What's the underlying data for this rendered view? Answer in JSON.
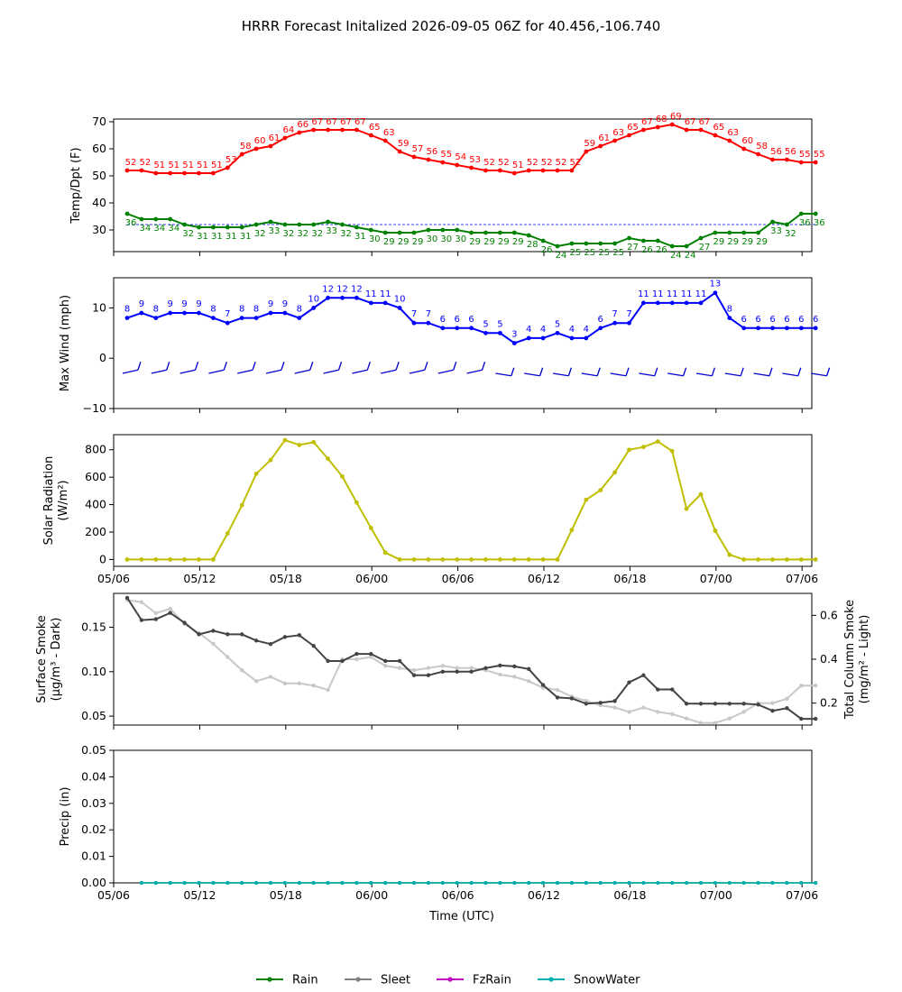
{
  "title": "HRRR Forecast Initalized 2026-09-05 06Z for 40.456,-106.740",
  "xlabel": "Time (UTC)",
  "xtick_labels": [
    "05/06",
    "05/12",
    "05/18",
    "06/00",
    "06/06",
    "06/12",
    "06/18",
    "07/00",
    "07/06"
  ],
  "legend": [
    {
      "label": "Rain",
      "color": "#008000"
    },
    {
      "label": "Sleet",
      "color": "#808080"
    },
    {
      "label": "FzRain",
      "color": "#c000c0"
    },
    {
      "label": "SnowWater",
      "color": "#00b0b0"
    }
  ],
  "chart_data": [
    {
      "type": "line",
      "panel": "temp_dewpoint",
      "ylabel": "Temp/Dpt (F)",
      "yticks": [
        30,
        40,
        50,
        60,
        70
      ],
      "ylim": [
        22,
        71
      ],
      "x_hours": [
        0,
        1,
        2,
        3,
        4,
        5,
        6,
        7,
        8,
        9,
        10,
        11,
        12,
        13,
        14,
        15,
        16,
        17,
        18,
        19,
        20,
        21,
        22,
        23,
        24,
        25,
        26,
        27,
        28,
        29,
        30,
        31,
        32,
        33,
        34,
        35,
        36,
        37,
        38,
        39,
        40,
        41,
        42,
        43,
        44,
        45,
        46,
        47,
        48
      ],
      "series": [
        {
          "name": "Temp",
          "color": "#ff0000",
          "values": [
            52,
            52,
            51,
            51,
            51,
            51,
            51,
            53,
            58,
            60,
            61,
            64,
            66,
            67,
            67,
            67,
            67,
            65,
            63,
            59,
            57,
            56,
            55,
            54,
            53,
            52,
            52,
            51,
            52,
            52,
            52,
            52,
            59,
            61,
            63,
            65,
            67,
            68,
            69,
            67,
            67,
            65,
            63,
            60,
            58,
            56,
            56,
            55,
            55
          ]
        },
        {
          "name": "Dewpoint",
          "color": "#008000",
          "values": [
            36,
            34,
            34,
            34,
            32,
            31,
            31,
            31,
            31,
            32,
            33,
            32,
            32,
            32,
            33,
            32,
            31,
            30,
            29,
            29,
            29,
            30,
            30,
            30,
            29,
            29,
            29,
            29,
            28,
            26,
            24,
            25,
            25,
            25,
            25,
            27,
            26,
            26,
            24,
            24,
            27,
            29,
            29,
            29,
            29,
            33,
            32,
            36,
            36
          ]
        }
      ],
      "reference_line": 32
    },
    {
      "type": "line",
      "panel": "max_wind",
      "ylabel": "Max Wind (mph)",
      "yticks": [
        -10,
        0,
        10
      ],
      "ylim": [
        -10,
        16
      ],
      "x_hours": [
        0,
        1,
        2,
        3,
        4,
        5,
        6,
        7,
        8,
        9,
        10,
        11,
        12,
        13,
        14,
        15,
        16,
        17,
        18,
        19,
        20,
        21,
        22,
        23,
        24,
        25,
        26,
        27,
        28,
        29,
        30,
        31,
        32,
        33,
        34,
        35,
        36,
        37,
        38,
        39,
        40,
        41,
        42,
        43,
        44,
        45,
        46,
        47,
        48
      ],
      "series": [
        {
          "name": "Max Wind",
          "color": "#0000ff",
          "values": [
            8,
            9,
            8,
            9,
            9,
            9,
            8,
            7,
            8,
            8,
            9,
            9,
            8,
            10,
            12,
            12,
            12,
            11,
            11,
            10,
            7,
            7,
            6,
            6,
            6,
            5,
            5,
            3,
            4,
            4,
            5,
            4,
            4,
            6,
            7,
            7,
            11,
            11,
            11,
            11,
            11,
            13,
            8,
            6,
            6,
            6,
            6,
            6,
            6
          ]
        }
      ],
      "wind_barbs": "row of wind barbs at y = -3"
    },
    {
      "type": "line",
      "panel": "solar_radiation",
      "ylabel": "Solar Radiation (W/m²)",
      "yticks": [
        0,
        200,
        400,
        600,
        800
      ],
      "ylim": [
        -50,
        910
      ],
      "series": [
        {
          "name": "Solar Radiation",
          "color": "#bfbf00",
          "values": [
            0,
            0,
            0,
            0,
            0,
            0,
            0,
            190,
            395,
            625,
            725,
            870,
            835,
            855,
            735,
            605,
            415,
            230,
            50,
            0,
            0,
            0,
            0,
            0,
            0,
            0,
            0,
            0,
            0,
            0,
            0,
            215,
            435,
            505,
            635,
            800,
            820,
            860,
            790,
            370,
            475,
            210,
            35,
            0,
            0,
            0,
            0,
            0,
            0
          ]
        }
      ]
    },
    {
      "type": "line",
      "panel": "smoke",
      "ylabel": "Surface Smoke (μg/m³ - Dark)",
      "ylabel_right": "Total Column Smoke (mg/m² - Light)",
      "yticks": [
        0.05,
        0.1,
        0.15
      ],
      "ylim": [
        0.04,
        0.188
      ],
      "yticks_right": [
        0.2,
        0.4,
        0.6
      ],
      "ylim_right": [
        0.1,
        0.7
      ],
      "series": [
        {
          "name": "Surface Smoke",
          "color": "#444444",
          "axis": "left",
          "values": [
            0.183,
            0.158,
            0.159,
            0.166,
            0.155,
            0.142,
            0.146,
            0.142,
            0.142,
            0.135,
            0.131,
            0.139,
            0.141,
            0.129,
            0.112,
            0.112,
            0.12,
            0.12,
            0.112,
            0.112,
            0.096,
            0.096,
            0.1,
            0.1,
            0.1,
            0.104,
            0.107,
            0.106,
            0.103,
            0.085,
            0.071,
            0.07,
            0.064,
            0.065,
            0.067,
            0.088,
            0.096,
            0.08,
            0.08,
            0.064,
            0.064,
            0.064,
            0.064,
            0.064,
            0.063,
            0.056,
            0.059,
            0.047,
            0.047
          ]
        },
        {
          "name": "Total Column Smoke",
          "color": "#c8c8c8",
          "axis": "right",
          "values": [
            0.67,
            0.66,
            0.61,
            0.63,
            0.56,
            0.52,
            0.47,
            0.41,
            0.35,
            0.3,
            0.32,
            0.29,
            0.29,
            0.28,
            0.26,
            0.4,
            0.4,
            0.41,
            0.37,
            0.36,
            0.35,
            0.36,
            0.37,
            0.36,
            0.36,
            0.35,
            0.33,
            0.32,
            0.3,
            0.27,
            0.26,
            0.23,
            0.21,
            0.19,
            0.18,
            0.16,
            0.18,
            0.16,
            0.15,
            0.13,
            0.11,
            0.11,
            0.13,
            0.16,
            0.2,
            0.2,
            0.22,
            0.28,
            0.28
          ]
        }
      ]
    },
    {
      "type": "line",
      "panel": "precip",
      "ylabel": "Precip (in)",
      "yticks": [
        0.0,
        0.01,
        0.02,
        0.03,
        0.04,
        0.05
      ],
      "ylim": [
        0.0,
        0.05
      ],
      "series": [
        {
          "name": "Rain",
          "color": "#008000",
          "values": [
            0,
            0,
            0,
            0,
            0,
            0,
            0,
            0,
            0,
            0,
            0,
            0,
            0,
            0,
            0,
            0,
            0,
            0,
            0,
            0,
            0,
            0,
            0,
            0,
            0,
            0,
            0,
            0,
            0,
            0,
            0,
            0,
            0,
            0,
            0,
            0,
            0,
            0,
            0,
            0,
            0,
            0,
            0,
            0,
            0,
            0,
            0,
            0
          ]
        },
        {
          "name": "SnowWater",
          "color": "#00b0b0",
          "values": [
            0,
            0,
            0,
            0,
            0,
            0,
            0,
            0,
            0,
            0,
            0,
            0,
            0,
            0,
            0,
            0,
            0,
            0,
            0,
            0,
            0,
            0,
            0,
            0,
            0,
            0,
            0,
            0,
            0,
            0,
            0,
            0,
            0,
            0,
            0,
            0,
            0,
            0,
            0,
            0,
            0,
            0,
            0,
            0,
            0,
            0,
            0,
            0
          ]
        }
      ]
    }
  ]
}
